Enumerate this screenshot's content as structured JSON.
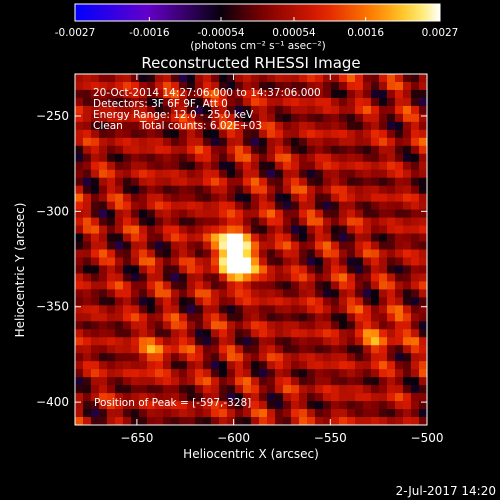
{
  "chart_data": {
    "type": "heatmap",
    "title": "Reconstructed RHESSI Image",
    "xlabel": "Heliocentric X (arcsec)",
    "ylabel": "Heliocentric Y (arcsec)",
    "xlim": [
      -682,
      -500
    ],
    "ylim": [
      -412,
      -228
    ],
    "x_ticks": [
      -650,
      -600,
      -550,
      -500
    ],
    "y_ticks": [
      -250,
      -300,
      -350,
      -400
    ],
    "colorbar": {
      "range": [
        -0.0027,
        0.0027
      ],
      "tick_values": [
        -0.0027,
        -0.0016,
        -0.00054,
        0.00054,
        0.0016,
        0.0027
      ],
      "tick_labels": [
        "-0.0027",
        "-0.0016",
        "-0.00054",
        "0.00054",
        "0.0016",
        "0.0027"
      ],
      "unit_label": "(photons cm⁻² s⁻¹ asec⁻²)"
    },
    "annotations": [
      "20-Oct-2014 14:27:06.000 to 14:37:06.000",
      "Detectors: 3F 6F 9F, Att 0",
      "Energy Range: 12.0 - 25.0 keV",
      "Clean",
      "Total counts: 6.02E+03"
    ],
    "peak_label": "Position of Peak = [-597,-328]",
    "peak": [
      -597,
      -328
    ],
    "sources": [
      {
        "x": -597,
        "y": -328,
        "amplitude": 0.0027
      },
      {
        "x": -602,
        "y": -316,
        "amplitude": 0.0019
      },
      {
        "x": -640,
        "y": -373,
        "amplitude": 0.0011
      },
      {
        "x": -523,
        "y": -364,
        "amplitude": 0.0011
      }
    ],
    "colormap": "fire"
  },
  "footer": {
    "date": "2-Jul-2017 14:20"
  }
}
